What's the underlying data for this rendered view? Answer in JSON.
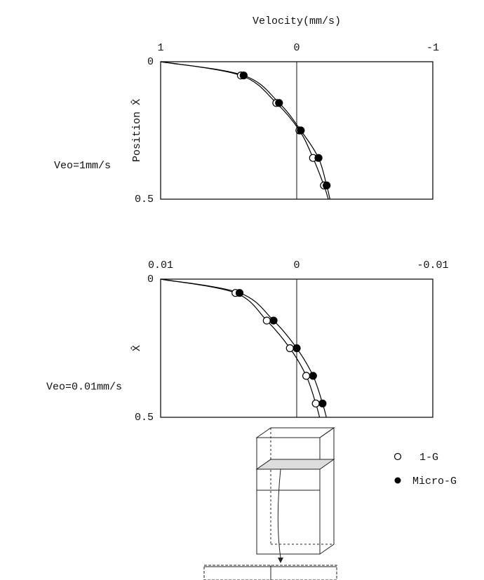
{
  "chart_data": [
    {
      "type": "scatter",
      "title": "Velocity(mm/s)",
      "y_label": "Position X̂",
      "annotation": "Veo=1mm/s",
      "xlim": [
        1,
        -1
      ],
      "xticks": [
        1,
        0,
        -1
      ],
      "ylim": [
        0,
        0.5
      ],
      "yticks": [
        0,
        0.5
      ],
      "zero_line": true,
      "series": [
        {
          "name": "1-G",
          "color": "#000000",
          "marker": "open",
          "x": [
            0.41,
            0.15,
            -0.02,
            -0.12,
            -0.2
          ],
          "y": [
            0.05,
            0.15,
            0.25,
            0.35,
            0.45
          ]
        },
        {
          "name": "Micro-G",
          "color": "#000000",
          "marker": "filled",
          "x": [
            0.39,
            0.13,
            -0.03,
            -0.16,
            -0.22
          ],
          "y": [
            0.05,
            0.15,
            0.25,
            0.35,
            0.45
          ]
        }
      ]
    },
    {
      "type": "scatter",
      "y_label": "X̂",
      "annotation": "Veo=0.01mm/s",
      "xlim": [
        0.01,
        -0.01
      ],
      "xticks": [
        0.01,
        0,
        -0.01
      ],
      "ylim": [
        0,
        0.5
      ],
      "yticks": [
        0,
        0.5
      ],
      "zero_line": true,
      "series": [
        {
          "color": "#000000",
          "marker": "open",
          "x": [
            0.0045,
            0.0022,
            0.0005,
            -0.0007,
            -0.0014
          ],
          "y": [
            0.05,
            0.15,
            0.25,
            0.35,
            0.45
          ]
        },
        {
          "color": "#000000",
          "marker": "filled",
          "x": [
            0.0042,
            0.0017,
            0,
            -0.0012,
            -0.0019
          ],
          "y": [
            0.05,
            0.15,
            0.25,
            0.35,
            0.45
          ]
        }
      ]
    }
  ]
}
